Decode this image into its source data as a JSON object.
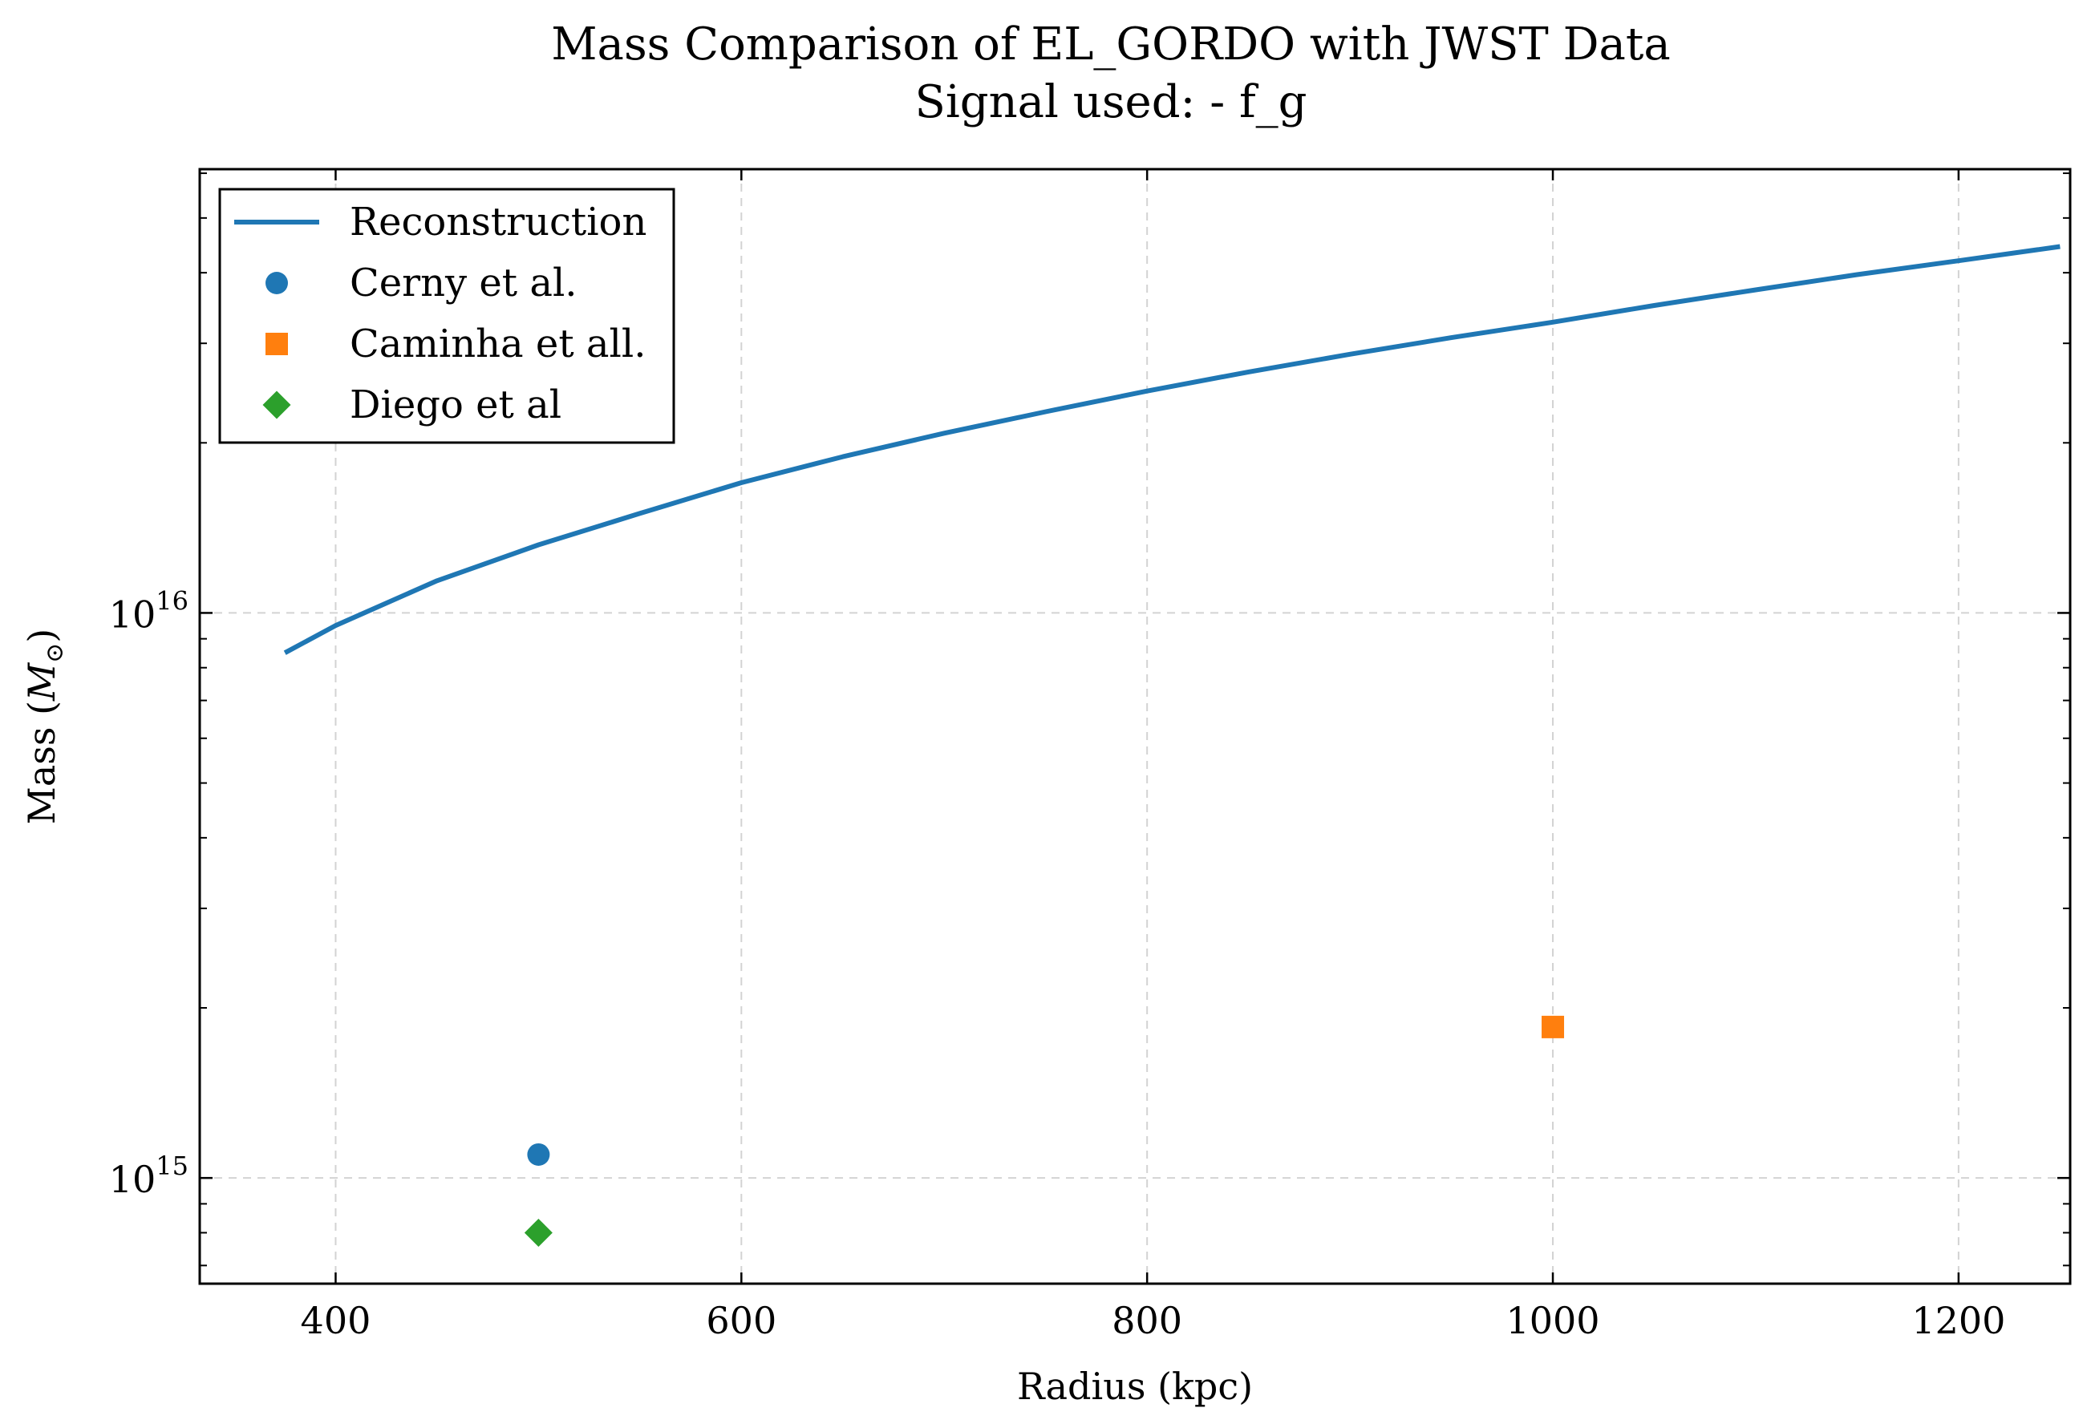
{
  "chart_data": {
    "type": "line",
    "title": "Mass Comparison of EL_GORDO with JWST Data",
    "subtitle": "Signal used: - f_g",
    "xlabel": "Radius (kpc)",
    "ylabel": "Mass (M⊙)",
    "xlim": [
      333,
      1255
    ],
    "ylim": [
      650000000000000.0,
      6.1e+16
    ],
    "yscale": "log",
    "x_ticks": [
      {
        "value": 400,
        "label": "400"
      },
      {
        "value": 600,
        "label": "600"
      },
      {
        "value": 800,
        "label": "800"
      },
      {
        "value": 1000,
        "label": "1000"
      },
      {
        "value": 1200,
        "label": "1200"
      }
    ],
    "y_ticks": [
      {
        "value": 1000000000000000.0,
        "base": "10",
        "exp": "15"
      },
      {
        "value": 1e+16,
        "base": "10",
        "exp": "16"
      }
    ],
    "grid": true,
    "legend_position": "top-left",
    "series": [
      {
        "name": "Reconstruction",
        "kind": "line",
        "color": "#1f77b4",
        "x": [
          375,
          400,
          450,
          500,
          550,
          600,
          650,
          700,
          750,
          800,
          850,
          900,
          950,
          1000,
          1050,
          1100,
          1150,
          1200,
          1250
        ],
        "y": [
          8500000000000000.0,
          9500000000000000.0,
          1.14e+16,
          1.32e+16,
          1.5e+16,
          1.7e+16,
          1.89e+16,
          2.08e+16,
          2.27e+16,
          2.47e+16,
          2.67e+16,
          2.87e+16,
          3.07e+16,
          3.27e+16,
          3.5e+16,
          3.73e+16,
          3.97e+16,
          4.2e+16,
          4.45e+16
        ]
      },
      {
        "name": "Cerny et al.",
        "kind": "scatter",
        "marker": "circle",
        "color": "#1f77b4",
        "x": [
          500
        ],
        "y": [
          1100000000000000.0
        ]
      },
      {
        "name": "Caminha et all.",
        "kind": "scatter",
        "marker": "square",
        "color": "#ff7f0e",
        "x": [
          1000
        ],
        "y": [
          1850000000000000.0
        ]
      },
      {
        "name": "Diego et al",
        "kind": "scatter",
        "marker": "diamond",
        "color": "#2ca02c",
        "x": [
          500
        ],
        "y": [
          800000000000000.0
        ]
      }
    ]
  }
}
